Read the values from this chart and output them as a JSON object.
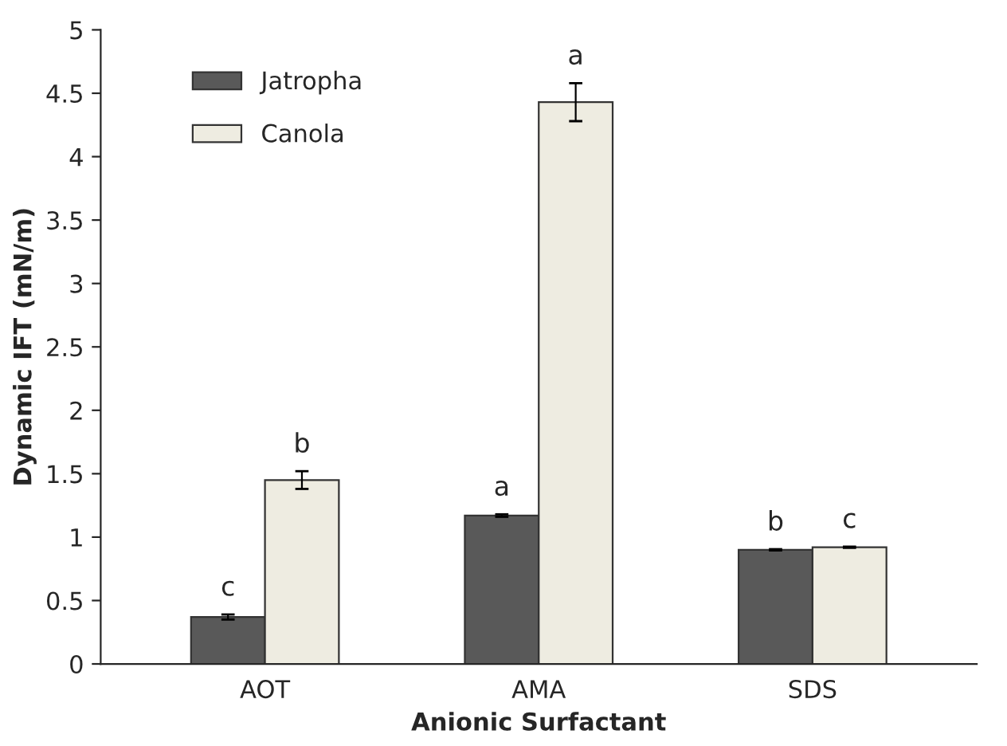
{
  "chart_data": {
    "type": "bar",
    "xlabel": "Anionic Surfactant",
    "ylabel": "Dynamic IFT (mN/m)",
    "categories": [
      "AOT",
      "AMA",
      "SDS"
    ],
    "series": [
      {
        "name": "Jatropha",
        "color": "#595959",
        "values": [
          0.37,
          1.17,
          0.9
        ],
        "errors": [
          0.02,
          0.01,
          0.005
        ],
        "value_labels": [
          "c",
          "a",
          "b"
        ]
      },
      {
        "name": "Canola",
        "color": "#eeece1",
        "values": [
          1.45,
          4.43,
          0.92
        ],
        "errors": [
          0.07,
          0.15,
          0.005
        ],
        "value_labels": [
          "b",
          "a",
          "c"
        ]
      }
    ],
    "ylim": [
      0,
      5
    ],
    "yticks": [
      0,
      0.5,
      1,
      1.5,
      2,
      2.5,
      3,
      3.5,
      4,
      4.5,
      5
    ],
    "grid": false,
    "legend": "top left"
  }
}
